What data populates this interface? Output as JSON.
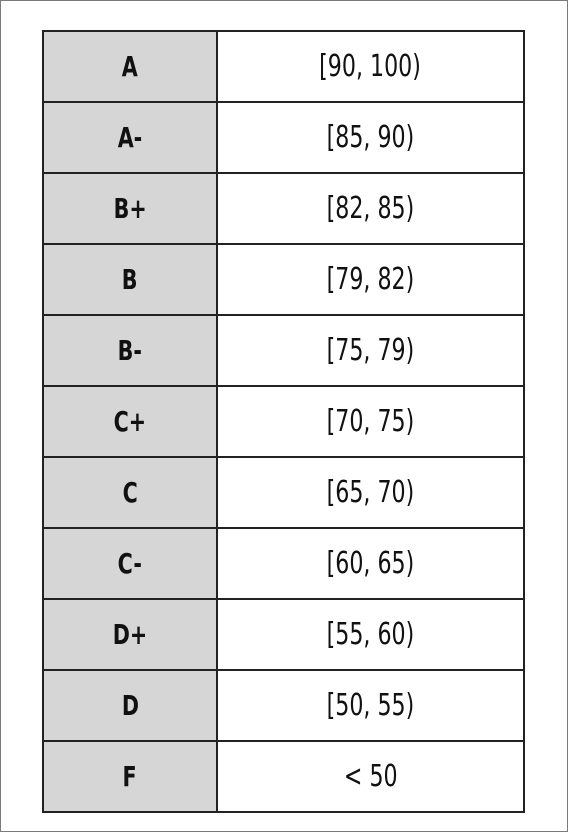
{
  "table": {
    "rows": [
      {
        "grade": "A",
        "range": "[90, 100)"
      },
      {
        "grade": "A-",
        "range": "[85, 90)"
      },
      {
        "grade": "B+",
        "range": "[82, 85)"
      },
      {
        "grade": "B",
        "range": "[79, 82)"
      },
      {
        "grade": "B-",
        "range": "[75, 79)"
      },
      {
        "grade": "C+",
        "range": "[70, 75)"
      },
      {
        "grade": "C",
        "range": "[65, 70)"
      },
      {
        "grade": "C-",
        "range": "[60, 65)"
      },
      {
        "grade": "D+",
        "range": "[55, 60)"
      },
      {
        "grade": "D",
        "range": "[50, 55)"
      },
      {
        "grade": "F",
        "range": "< 50"
      }
    ],
    "colors": {
      "grade_column_bg": "#d6d6d6",
      "range_column_bg": "#ffffff",
      "border": "#222222"
    }
  }
}
